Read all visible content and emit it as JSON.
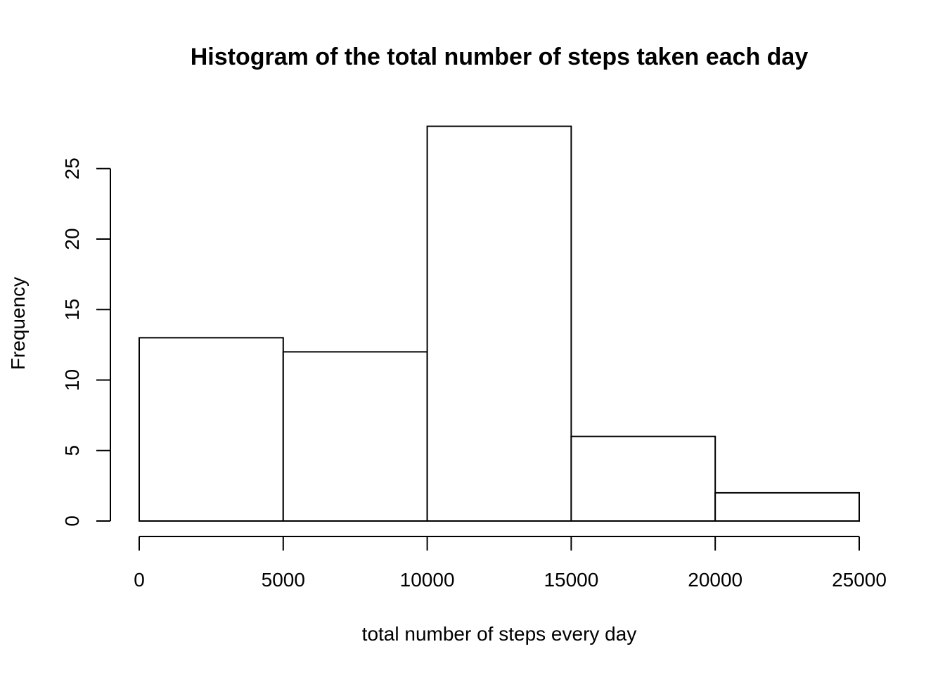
{
  "chart_data": {
    "type": "bar",
    "title": "Histogram of the total number of steps taken each day",
    "xlabel": "total number of steps every day",
    "ylabel": "Frequency",
    "bins": [
      {
        "start": 0,
        "end": 5000,
        "count": 13
      },
      {
        "start": 5000,
        "end": 10000,
        "count": 12
      },
      {
        "start": 10000,
        "end": 15000,
        "count": 28
      },
      {
        "start": 15000,
        "end": 20000,
        "count": 6
      },
      {
        "start": 20000,
        "end": 25000,
        "count": 2
      }
    ],
    "xlim": [
      0,
      25000
    ],
    "ylim": [
      0,
      28
    ],
    "xticks": [
      0,
      5000,
      10000,
      15000,
      20000,
      25000
    ],
    "yticks": [
      0,
      5,
      10,
      15,
      20,
      25
    ],
    "grid": false,
    "bar_fill": "#ffffff",
    "bar_stroke": "#000000"
  }
}
